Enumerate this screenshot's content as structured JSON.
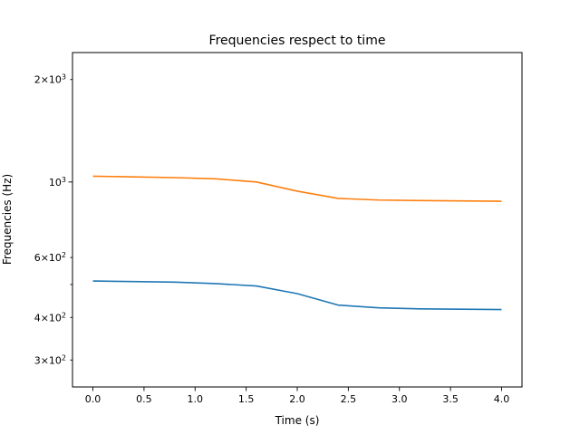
{
  "chart_data": {
    "type": "line",
    "title": "Frequencies respect to time",
    "xlabel": "Time (s)",
    "ylabel": "Frequencies (Hz)",
    "xlim": [
      -0.2,
      4.2
    ],
    "ylim": [
      250,
      2400
    ],
    "yscale": "log",
    "grid": false,
    "x": [
      0.0,
      0.4,
      0.8,
      1.2,
      1.6,
      2.0,
      2.4,
      2.8,
      3.2,
      3.6,
      4.0
    ],
    "series": [
      {
        "color": "#1f77b4",
        "values": [
          512,
          510,
          508,
          503,
          495,
          470,
          435,
          427,
          424,
          423,
          422
        ]
      },
      {
        "color": "#ff7f0e",
        "values": [
          1040,
          1035,
          1030,
          1022,
          1000,
          940,
          895,
          885,
          882,
          880,
          878
        ]
      }
    ],
    "xticks": [
      {
        "value": 0.0,
        "label": "0.0"
      },
      {
        "value": 0.5,
        "label": "0.5"
      },
      {
        "value": 1.0,
        "label": "1.0"
      },
      {
        "value": 1.5,
        "label": "1.5"
      },
      {
        "value": 2.0,
        "label": "2.0"
      },
      {
        "value": 2.5,
        "label": "2.5"
      },
      {
        "value": 3.0,
        "label": "3.0"
      },
      {
        "value": 3.5,
        "label": "3.5"
      },
      {
        "value": 4.0,
        "label": "4.0"
      }
    ],
    "yticks_major": [
      {
        "value": 1000,
        "base": "10",
        "exp": "3"
      }
    ],
    "yticks_minor": [
      {
        "value": 300,
        "coef": "3",
        "base": "10",
        "exp": "2"
      },
      {
        "value": 400,
        "coef": "4",
        "base": "10",
        "exp": "2"
      },
      {
        "value": 500,
        "coef": "",
        "base": "",
        "exp": ""
      },
      {
        "value": 600,
        "coef": "6",
        "base": "10",
        "exp": "2"
      },
      {
        "value": 2000,
        "coef": "2",
        "base": "10",
        "exp": "3"
      }
    ]
  }
}
